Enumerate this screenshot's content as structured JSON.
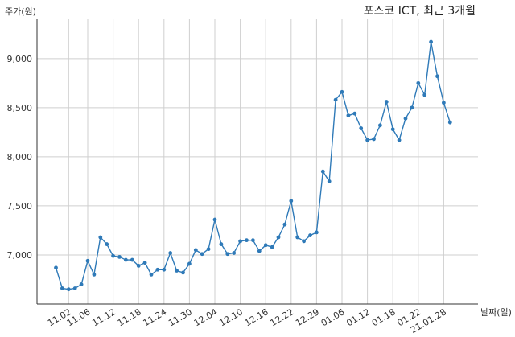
{
  "chart_data": {
    "type": "line",
    "title": "포스코 ICT, 최근 3개월",
    "ylabel": "주가(원)",
    "xlabel": "날짜(일)",
    "ylim": [
      6500,
      9400
    ],
    "yticks": [
      7000,
      7500,
      8000,
      8500,
      9000
    ],
    "ytick_labels": [
      "7,000",
      "7,500",
      "8,000",
      "8,500",
      "9,000"
    ],
    "xtick_labels": [
      "11.02",
      "11.06",
      "11.12",
      "11.18",
      "11.24",
      "11.30",
      "12.04",
      "12.10",
      "12.16",
      "12.22",
      "12.29",
      "01.06",
      "01.12",
      "01.18",
      "01.22",
      "21.01.28"
    ],
    "xtick_index": [
      2,
      5,
      9,
      13,
      17,
      21,
      25,
      29,
      33,
      37,
      41,
      45,
      49,
      53,
      57,
      61
    ],
    "grid": true,
    "color": "#2f7ab8",
    "values": [
      6870,
      6660,
      6650,
      6660,
      6700,
      6940,
      6800,
      7180,
      7110,
      6990,
      6980,
      6950,
      6950,
      6890,
      6920,
      6800,
      6850,
      6850,
      7020,
      6840,
      6820,
      6910,
      7050,
      7010,
      7060,
      7360,
      7110,
      7010,
      7020,
      7140,
      7150,
      7150,
      7040,
      7100,
      7080,
      7180,
      7310,
      7550,
      7180,
      7140,
      7200,
      7230,
      7850,
      7750,
      8580,
      8660,
      8420,
      8440,
      8290,
      8170,
      8180,
      8320,
      8560,
      8280,
      8170,
      8390,
      8500,
      8750,
      8630,
      9170,
      8820,
      8550,
      8350
    ]
  }
}
